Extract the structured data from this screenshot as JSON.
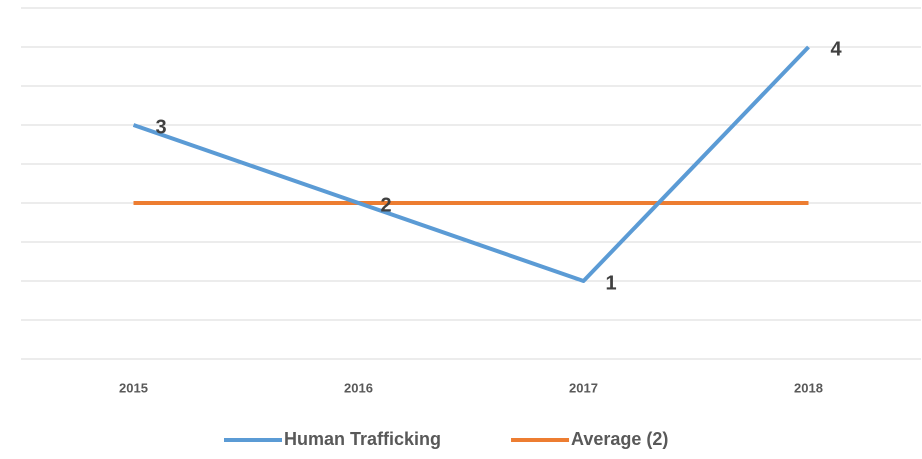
{
  "chart_data": {
    "type": "line",
    "categories": [
      "2015",
      "2016",
      "2017",
      "2018"
    ],
    "series": [
      {
        "name": "Human Trafficking",
        "color": "#5b9bd5",
        "values": [
          3,
          2,
          1,
          4
        ],
        "data_labels": true
      },
      {
        "name": "Average (2)",
        "color": "#ed7d31",
        "values": [
          2,
          2,
          2,
          2
        ],
        "data_labels": false
      }
    ],
    "ylim": [
      0,
      4.5
    ],
    "yticks": [
      0,
      0.5,
      1,
      1.5,
      2,
      2.5,
      3,
      3.5,
      4,
      4.5
    ],
    "grid": true,
    "legend": "bottom"
  }
}
